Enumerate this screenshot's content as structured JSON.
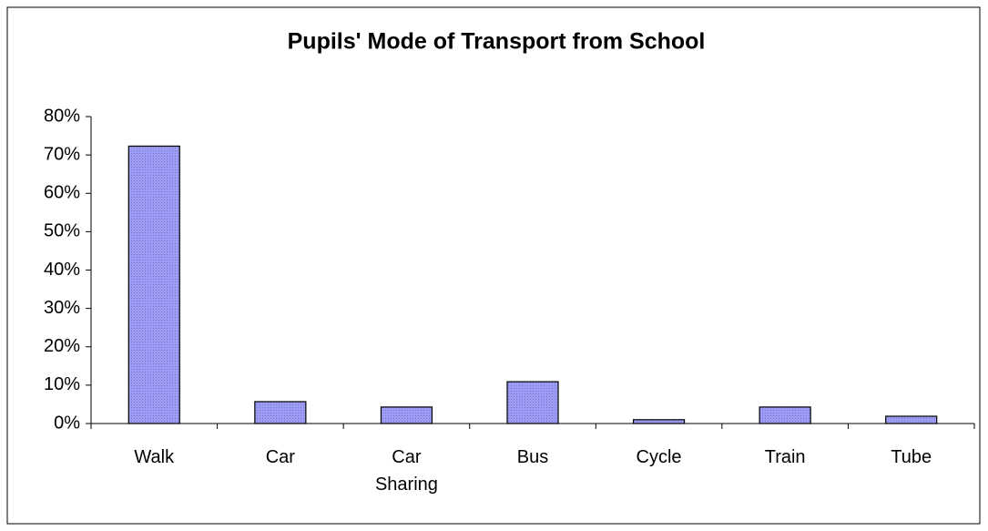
{
  "chart_data": {
    "type": "bar",
    "title": "Pupils' Mode of Transport from School",
    "categories": [
      "Walk",
      "Car",
      "Car Sharing",
      "Bus",
      "Cycle",
      "Train",
      "Tube"
    ],
    "values": [
      72.3,
      5.7,
      4.3,
      10.9,
      1.0,
      4.3,
      1.9
    ],
    "color": "#9999f0",
    "ylim": [
      0,
      80
    ],
    "yticks": [
      {
        "value": 0,
        "label": "0%"
      },
      {
        "value": 10,
        "label": "10%"
      },
      {
        "value": 20,
        "label": "20%"
      },
      {
        "value": 30,
        "label": "30%"
      },
      {
        "value": 40,
        "label": "40%"
      },
      {
        "value": 50,
        "label": "50%"
      },
      {
        "value": 60,
        "label": "60%"
      },
      {
        "value": 70,
        "label": "70%"
      },
      {
        "value": 80,
        "label": "80%"
      }
    ],
    "grid": false
  }
}
